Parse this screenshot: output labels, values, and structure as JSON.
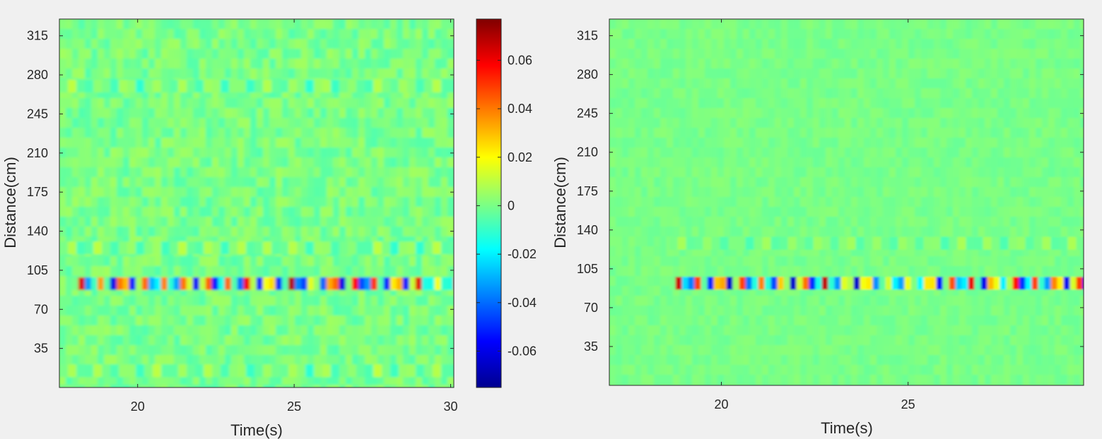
{
  "chart_data": [
    {
      "type": "heatmap",
      "title": "",
      "xlabel": "Time(s)",
      "ylabel": "Distance(cm)",
      "xlim": [
        17.5,
        30.1
      ],
      "ylim": [
        0,
        330
      ],
      "xticks": [
        20,
        25,
        30
      ],
      "yticks": [
        35,
        70,
        105,
        140,
        175,
        210,
        245,
        280,
        315
      ],
      "grid": false,
      "colormap": "jet",
      "features": [
        {
          "kind": "strong band",
          "distance": 93,
          "from": 17.9,
          "to": 30.1
        },
        {
          "kind": "weak band",
          "distance": 125,
          "from": 17.5,
          "to": 30.1
        },
        {
          "kind": "weak band",
          "distance": 270,
          "from": 17.5,
          "to": 30.1
        },
        {
          "kind": "weak band",
          "distance": 15,
          "from": 17.5,
          "to": 30.1
        }
      ]
    },
    {
      "type": "heatmap",
      "title": "",
      "xlabel": "Time(s)",
      "ylabel": "Distance(cm)",
      "xlim": [
        17.0,
        29.7
      ],
      "ylim": [
        0,
        330
      ],
      "xticks": [
        20,
        25
      ],
      "yticks": [
        35,
        70,
        105,
        140,
        175,
        210,
        245,
        280,
        315
      ],
      "grid": false,
      "colormap": "jet",
      "features": [
        {
          "kind": "strong band",
          "distance": 92,
          "from": 18.6,
          "to": 29.7
        },
        {
          "kind": "weak band",
          "distance": 128,
          "from": 18.6,
          "to": 29.7
        }
      ]
    }
  ],
  "colorbar": {
    "range": [
      -0.075,
      0.077
    ],
    "ticks": [
      "-0.06",
      "-0.04",
      "-0.02",
      "0",
      "0.02",
      "0.04",
      "0.06"
    ],
    "tick_values": [
      -0.06,
      -0.04,
      -0.02,
      0,
      0.02,
      0.04,
      0.06
    ]
  },
  "colors": {
    "background": "#f0f0f0",
    "zero": "#80ff80",
    "jet": [
      "#00008f",
      "#0000ff",
      "#00ffff",
      "#80ff80",
      "#ffff00",
      "#ff0000",
      "#800000"
    ]
  }
}
